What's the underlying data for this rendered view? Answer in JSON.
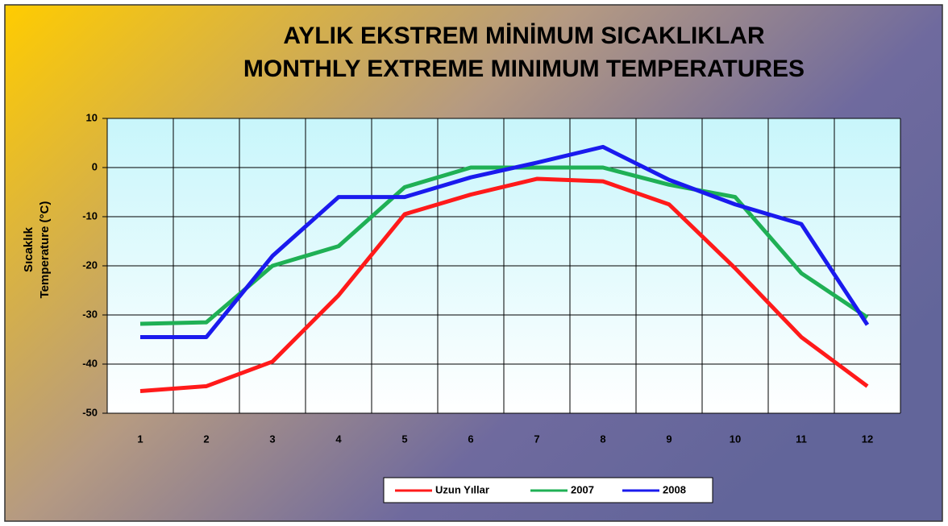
{
  "chart_data": {
    "type": "line",
    "title": [
      "AYLIK EKSTREM MİNİMUM SICAKLIKLAR",
      "MONTHLY EXTREME MINIMUM TEMPERATURES"
    ],
    "y_label": [
      "Sıcaklık",
      "Temperature (°C)"
    ],
    "categories": [
      "1",
      "2",
      "3",
      "4",
      "5",
      "6",
      "7",
      "8",
      "9",
      "10",
      "11",
      "12"
    ],
    "series": [
      {
        "name": "Uzun Yıllar",
        "color": "#ff1a1a",
        "values": [
          -45.5,
          -44.5,
          -39.5,
          -26,
          -9.5,
          -5.5,
          -2.3,
          -2.8,
          -7.5,
          -20.5,
          -34.5,
          -44.5
        ]
      },
      {
        "name": "2007",
        "color": "#1fb055",
        "values": [
          -31.8,
          -31.5,
          -20,
          -16,
          -4,
          0,
          0,
          0,
          -3.5,
          -6,
          -21.5,
          -30.5
        ]
      },
      {
        "name": "2008",
        "color": "#1a1aee",
        "values": [
          -34.5,
          -34.5,
          -18,
          -6,
          -6,
          -2,
          1,
          4.2,
          -2.5,
          -7.5,
          -11.5,
          -32
        ]
      }
    ],
    "ylim": [
      -50,
      10
    ],
    "yticks": [
      10,
      0,
      -10,
      -20,
      -30,
      -40,
      -50
    ],
    "grid": true,
    "legend": "bottom"
  }
}
